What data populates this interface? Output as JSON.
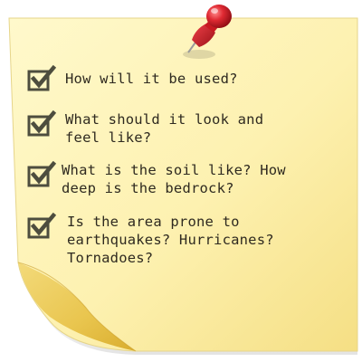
{
  "note": {
    "color": "#fdf3b3",
    "pin_color": "#d6202a"
  },
  "checklist": {
    "items": [
      {
        "label": "How will it be used?",
        "checked": true,
        "icon": "checkbox-checked-icon"
      },
      {
        "label": "What should it look and\nfeel like?",
        "checked": true,
        "icon": "checkbox-checked-icon"
      },
      {
        "label": "What is the soil like? How\ndeep is the bedrock?",
        "checked": true,
        "icon": "checkbox-checked-icon"
      },
      {
        "label": "Is the area prone to\nearthquakes? Hurricanes?\nTornadoes?",
        "checked": true,
        "icon": "checkbox-checked-icon"
      }
    ]
  },
  "icons": {
    "pin": "pushpin-icon"
  }
}
